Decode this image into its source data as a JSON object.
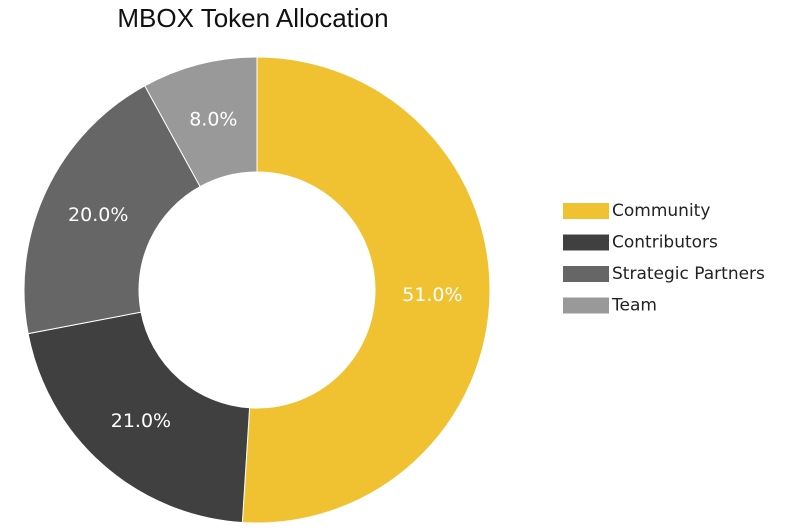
{
  "chart_data": {
    "type": "donut",
    "title": "MBOX Token Allocation",
    "categories": [
      "Community",
      "Contributors",
      "Strategic Partners",
      "Team"
    ],
    "values": [
      51,
      21,
      20,
      8
    ],
    "value_labels": [
      "51.0%",
      "21.0%",
      "20.0%",
      "8.0%"
    ],
    "colors": [
      "#f0c232",
      "#404040",
      "#666666",
      "#999999"
    ],
    "legend": "right"
  }
}
